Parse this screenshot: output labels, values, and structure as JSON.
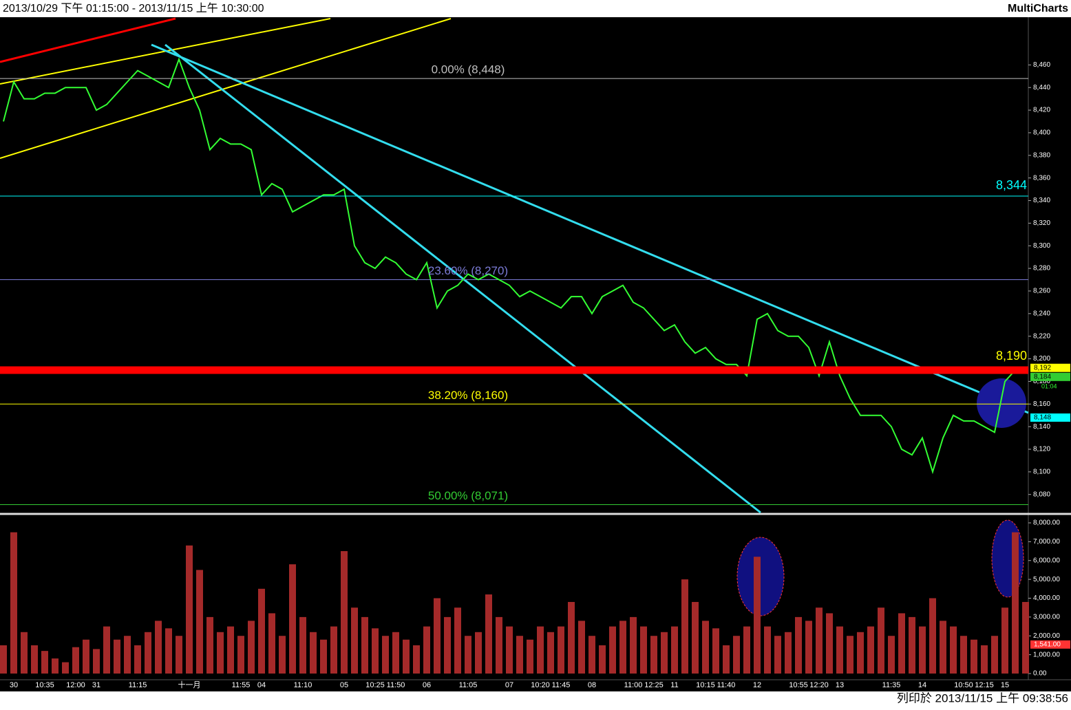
{
  "header": {
    "range": "2013/10/29 下午 01:15:00 - 2013/11/15 上午 10:30:00",
    "brand": "MultiCharts"
  },
  "footer": "列印於 2013/11/15 上午 09:38:56",
  "chart_data": [
    {
      "type": "line",
      "color": "#33ff33",
      "categories": [
        null,
        "30",
        null,
        null,
        "10:35",
        null,
        null,
        "12:00",
        null,
        "31",
        null,
        null,
        null,
        "11:15",
        null,
        null,
        null,
        null,
        "十一月",
        null,
        null,
        null,
        null,
        "11:55",
        null,
        "04",
        null,
        null,
        null,
        "11:10",
        null,
        null,
        null,
        "05",
        null,
        null,
        "10:25",
        null,
        "11:50",
        null,
        null,
        "06",
        null,
        null,
        null,
        "11:05",
        null,
        null,
        null,
        "07",
        null,
        null,
        "10:20",
        null,
        "11:45",
        null,
        null,
        "08",
        null,
        null,
        null,
        "11:00",
        null,
        "12:25",
        null,
        "11",
        null,
        null,
        "10:15",
        null,
        "11:40",
        null,
        null,
        "12",
        null,
        null,
        null,
        "10:55",
        null,
        "12:20",
        null,
        "13",
        null,
        null,
        null,
        null,
        "11:35",
        null,
        null,
        "14",
        null,
        null,
        null,
        "10:50",
        null,
        "12:15",
        null,
        "15",
        null,
        null
      ],
      "values": [
        8410,
        8445,
        8430,
        8430,
        8435,
        8435,
        8440,
        8440,
        8440,
        8420,
        8425,
        8435,
        8445,
        8455,
        8450,
        8445,
        8440,
        8465,
        8440,
        8420,
        8385,
        8395,
        8390,
        8390,
        8385,
        8345,
        8355,
        8350,
        8330,
        8335,
        8340,
        8345,
        8345,
        8350,
        8300,
        8285,
        8280,
        8290,
        8285,
        8275,
        8270,
        8285,
        8245,
        8260,
        8265,
        8275,
        8270,
        8275,
        8270,
        8265,
        8255,
        8260,
        8255,
        8250,
        8245,
        8255,
        8255,
        8240,
        8255,
        8260,
        8265,
        8250,
        8245,
        8235,
        8225,
        8230,
        8215,
        8205,
        8210,
        8200,
        8195,
        8195,
        8185,
        8235,
        8240,
        8225,
        8220,
        8220,
        8210,
        8185,
        8215,
        8185,
        8165,
        8150,
        8150,
        8150,
        8140,
        8120,
        8115,
        8130,
        8100,
        8130,
        8150,
        8145,
        8145,
        8140,
        8135,
        8180,
        8190,
        8192
      ],
      "ylim": [
        8064,
        8501
      ],
      "yticks": [
        {
          "value": 8080,
          "label": "8,080"
        },
        {
          "value": 8100,
          "label": "8,100"
        },
        {
          "value": 8120,
          "label": "8,120"
        },
        {
          "value": 8140,
          "label": "8,140"
        },
        {
          "value": 8160,
          "label": "8,160"
        },
        {
          "value": 8180,
          "label": "8,180"
        },
        {
          "value": 8200,
          "label": "8,200"
        },
        {
          "value": 8220,
          "label": "8,220"
        },
        {
          "value": 8240,
          "label": "8,240"
        },
        {
          "value": 8260,
          "label": "8,260"
        },
        {
          "value": 8280,
          "label": "8,280"
        },
        {
          "value": 8300,
          "label": "8,300"
        },
        {
          "value": 8320,
          "label": "8,320"
        },
        {
          "value": 8340,
          "label": "8,340"
        },
        {
          "value": 8360,
          "label": "8,360"
        },
        {
          "value": 8380,
          "label": "8,380"
        },
        {
          "value": 8400,
          "label": "8,400"
        },
        {
          "value": 8420,
          "label": "8,420"
        },
        {
          "value": 8440,
          "label": "8,440"
        },
        {
          "value": 8460,
          "label": "8,460"
        }
      ],
      "fib_levels": [
        {
          "value": 8448,
          "label": "0.00% (8,448)",
          "color": "#c0c0c0"
        },
        {
          "value": 8270,
          "label": "23.60% (8,270)",
          "color": "#7b7bd6"
        },
        {
          "value": 8160,
          "label": "38.20% (8,160)",
          "color": "#ffff00"
        },
        {
          "value": 8071,
          "label": "50.00% (8,071)",
          "color": "#33cc33"
        }
      ],
      "price_levels": [
        {
          "value": 8344,
          "label": "8,344",
          "color": "#00ffff"
        },
        {
          "value": 8190,
          "label": "8,190",
          "color": "#ff0000"
        }
      ],
      "tags": [
        {
          "value": 8192,
          "label": "8,192",
          "color": "#ffff00"
        },
        {
          "value": 8184,
          "label": "8,184",
          "color": "#33cc33"
        },
        {
          "value": 8148,
          "label": "8,148",
          "color": "#00ffff"
        }
      ],
      "countdown": "01:04"
    },
    {
      "type": "bar",
      "color": "#a52a2a",
      "values": [
        1500,
        7500,
        2200,
        1500,
        1200,
        800,
        600,
        1400,
        1800,
        1300,
        2500,
        1800,
        2000,
        1500,
        2200,
        2800,
        2400,
        2000,
        6800,
        5500,
        3000,
        2200,
        2500,
        2000,
        2800,
        4500,
        3200,
        2000,
        5800,
        3000,
        2200,
        1800,
        2500,
        6500,
        3500,
        3000,
        2400,
        2000,
        2200,
        1800,
        1500,
        2500,
        4000,
        3000,
        3500,
        2000,
        2200,
        4200,
        3000,
        2500,
        2000,
        1800,
        2500,
        2200,
        2500,
        3800,
        2800,
        2000,
        1500,
        2500,
        2800,
        3000,
        2500,
        2000,
        2200,
        2500,
        5000,
        3800,
        2800,
        2400,
        1500,
        2000,
        2500,
        6200,
        2500,
        2000,
        2200,
        3000,
        2800,
        3500,
        3200,
        2500,
        2000,
        2200,
        2500,
        3500,
        2000,
        3200,
        3000,
        2500,
        4000,
        2800,
        2500,
        2000,
        1800,
        1500,
        2000,
        3500,
        7500,
        3800
      ],
      "ylim": [
        0,
        8365
      ],
      "yticks": [
        {
          "value": 0,
          "label": "0.00"
        },
        {
          "value": 1000,
          "label": "1,000.00"
        },
        {
          "value": 2000,
          "label": "2,000.00"
        },
        {
          "value": 3000,
          "label": "3,000.00"
        },
        {
          "value": 4000,
          "label": "4,000.00"
        },
        {
          "value": 5000,
          "label": "5,000.00"
        },
        {
          "value": 6000,
          "label": "6,000.00"
        },
        {
          "value": 7000,
          "label": "7,000.00"
        },
        {
          "value": 8000,
          "label": "8,000.00"
        }
      ],
      "tags": [
        {
          "value": 1541,
          "label": "1,541.00",
          "color": "#ff3333"
        }
      ]
    }
  ]
}
